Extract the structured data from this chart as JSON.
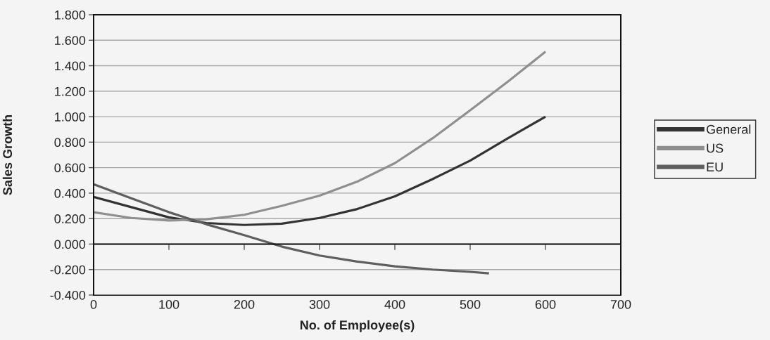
{
  "chart_data": {
    "type": "line",
    "xlabel": "No. of Employee(s)",
    "ylabel": "Sales Growth",
    "x": [
      0,
      50,
      100,
      150,
      200,
      250,
      300,
      350,
      400,
      450,
      500,
      550,
      600
    ],
    "series": [
      {
        "name": "General",
        "color": "#333333",
        "values": [
          0.37,
          0.29,
          0.21,
          0.165,
          0.15,
          0.16,
          0.205,
          0.275,
          0.375,
          0.51,
          0.655,
          0.83,
          1.0
        ]
      },
      {
        "name": "US",
        "color": "#8f8f8f",
        "values": [
          0.25,
          0.205,
          0.185,
          0.195,
          0.23,
          0.3,
          0.38,
          0.49,
          0.635,
          0.83,
          1.05,
          1.275,
          1.51
        ]
      },
      {
        "name": "EU",
        "color": "#5e5e5e",
        "x": [
          0,
          50,
          100,
          150,
          200,
          250,
          300,
          350,
          400,
          450,
          500,
          525
        ],
        "values": [
          0.47,
          0.36,
          0.25,
          0.155,
          0.07,
          -0.02,
          -0.09,
          -0.137,
          -0.175,
          -0.2,
          -0.218,
          -0.23
        ]
      }
    ],
    "xlim": [
      0,
      700
    ],
    "xticks": [
      0,
      100,
      200,
      300,
      400,
      500,
      600,
      700
    ],
    "ylim": [
      -0.4,
      1.8
    ],
    "yticks": [
      {
        "value": -0.4,
        "label": "-0.400"
      },
      {
        "value": -0.2,
        "label": "-0.200"
      },
      {
        "value": 0,
        "label": "0.000"
      },
      {
        "value": 0.2,
        "label": "0.200"
      },
      {
        "value": 0.4,
        "label": "0.400"
      },
      {
        "value": 0.6,
        "label": "0.600"
      },
      {
        "value": 0.8,
        "label": "0.800"
      },
      {
        "value": 1.0,
        "label": "1.000"
      },
      {
        "value": 1.2,
        "label": "1.200"
      },
      {
        "value": 1.4,
        "label": "1.400"
      },
      {
        "value": 1.6,
        "label": "1.600"
      },
      {
        "value": 1.8,
        "label": "1.800"
      }
    ],
    "grid": "y",
    "legend": "right",
    "line_style": "solid"
  }
}
